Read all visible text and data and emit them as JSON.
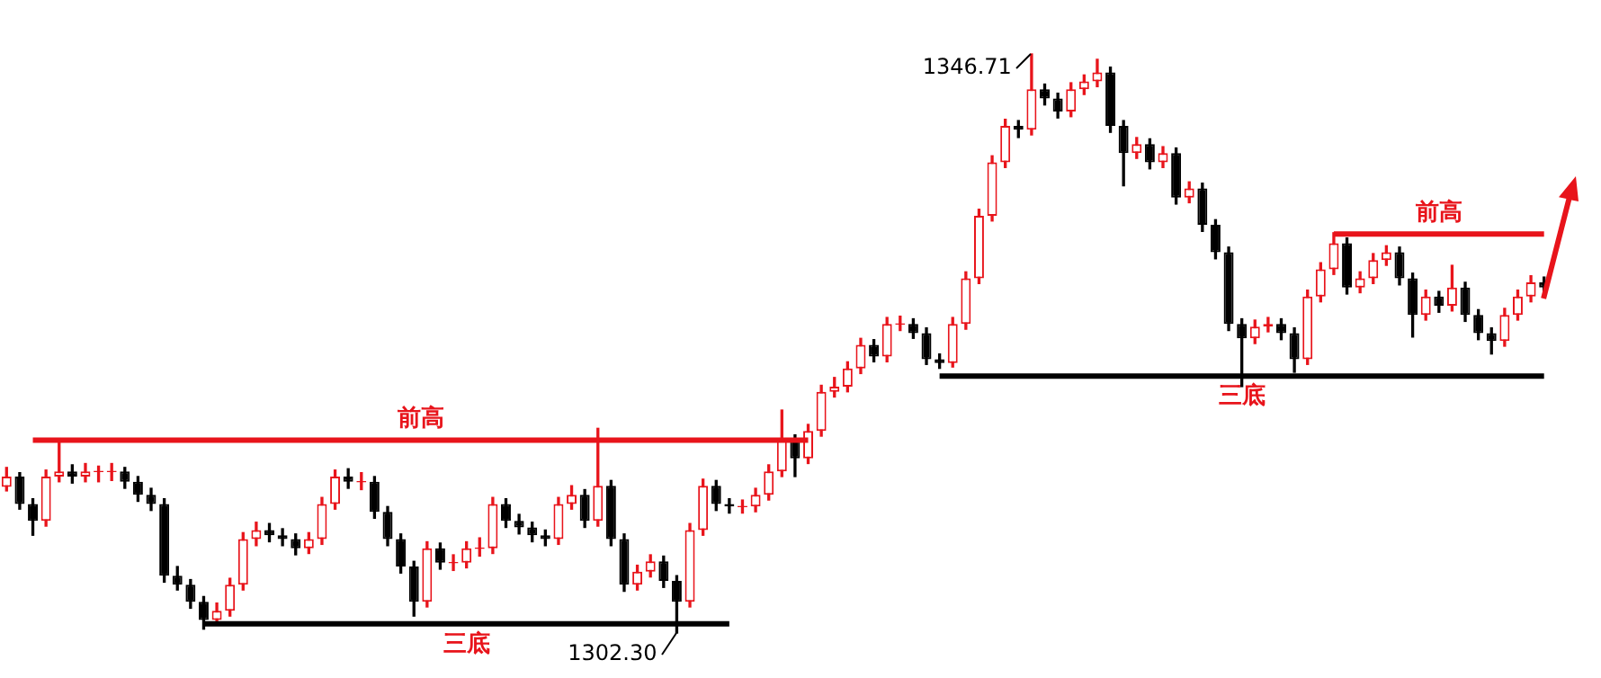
{
  "chart_data": {
    "type": "candlestick",
    "categories": [
      null,
      null,
      null,
      null,
      null,
      null,
      null,
      null,
      null,
      null,
      null,
      null,
      null,
      null,
      null,
      null,
      null,
      null,
      null,
      null,
      null,
      null,
      null,
      null,
      null,
      null,
      null,
      null,
      null,
      null,
      null,
      null,
      null,
      null,
      null,
      null,
      null,
      null,
      null,
      null,
      null,
      null,
      null,
      null,
      null,
      null,
      null,
      null,
      null,
      null,
      null,
      null,
      null,
      null,
      null,
      null,
      null,
      null,
      null,
      null,
      null,
      null,
      null,
      null,
      null,
      null,
      null,
      null,
      null,
      null,
      null,
      null,
      null,
      null,
      null,
      null,
      null,
      null,
      null,
      null,
      null,
      null,
      null,
      null,
      null,
      null,
      null,
      null,
      null,
      null,
      null,
      null,
      null,
      null,
      null,
      null,
      null,
      null,
      null,
      null,
      null,
      null,
      null,
      null,
      null,
      null,
      null,
      null,
      null,
      null,
      null,
      null,
      null,
      null,
      null,
      null,
      null,
      null
    ],
    "ohlc": [
      [
        1313.5,
        1315.0,
        1313.2,
        1314.3
      ],
      [
        1314.3,
        1314.6,
        1311.8,
        1312.2
      ],
      [
        1312.2,
        1312.6,
        1309.8,
        1310.9
      ],
      [
        1310.9,
        1314.8,
        1310.5,
        1314.3
      ],
      [
        1314.3,
        1317.1,
        1313.9,
        1314.7
      ],
      [
        1314.7,
        1315.2,
        1313.8,
        1314.3
      ],
      [
        1314.3,
        1315.3,
        1313.9,
        1314.7
      ],
      [
        1314.7,
        1315.1,
        1313.9,
        1314.7
      ],
      [
        1314.7,
        1315.3,
        1314.0,
        1314.7
      ],
      [
        1314.7,
        1315.0,
        1313.4,
        1313.9
      ],
      [
        1313.9,
        1314.3,
        1312.4,
        1312.9
      ],
      [
        1312.9,
        1313.4,
        1311.7,
        1312.2
      ],
      [
        1312.2,
        1312.6,
        1306.2,
        1306.7
      ],
      [
        1306.7,
        1307.4,
        1305.6,
        1306.0
      ],
      [
        1306.0,
        1306.4,
        1304.2,
        1304.7
      ],
      [
        1304.7,
        1305.1,
        1302.6,
        1303.3
      ],
      [
        1303.3,
        1304.6,
        1302.9,
        1304.0
      ],
      [
        1304.0,
        1306.5,
        1303.6,
        1306.0
      ],
      [
        1306.0,
        1310.0,
        1305.6,
        1309.5
      ],
      [
        1309.5,
        1310.8,
        1309.0,
        1310.2
      ],
      [
        1310.2,
        1310.7,
        1309.3,
        1309.8
      ],
      [
        1309.8,
        1310.3,
        1309.0,
        1309.5
      ],
      [
        1309.5,
        1309.9,
        1308.3,
        1308.8
      ],
      [
        1308.8,
        1310.0,
        1308.4,
        1309.5
      ],
      [
        1309.5,
        1312.7,
        1309.1,
        1312.2
      ],
      [
        1312.2,
        1314.8,
        1311.8,
        1314.3
      ],
      [
        1314.3,
        1314.9,
        1313.4,
        1313.9
      ],
      [
        1313.9,
        1314.6,
        1313.3,
        1313.9
      ],
      [
        1313.9,
        1314.3,
        1311.1,
        1311.6
      ],
      [
        1311.6,
        1312.0,
        1309.0,
        1309.5
      ],
      [
        1309.5,
        1309.9,
        1306.9,
        1307.4
      ],
      [
        1307.4,
        1307.8,
        1303.6,
        1304.7
      ],
      [
        1304.7,
        1309.3,
        1304.3,
        1308.8
      ],
      [
        1308.8,
        1309.2,
        1307.2,
        1307.7
      ],
      [
        1307.7,
        1308.3,
        1307.1,
        1307.7
      ],
      [
        1307.7,
        1309.3,
        1307.3,
        1308.8
      ],
      [
        1308.8,
        1309.6,
        1308.2,
        1308.8
      ],
      [
        1308.8,
        1312.7,
        1308.4,
        1312.2
      ],
      [
        1312.2,
        1312.6,
        1310.4,
        1310.9
      ],
      [
        1310.9,
        1311.4,
        1309.9,
        1310.4
      ],
      [
        1310.4,
        1310.8,
        1309.3,
        1309.8
      ],
      [
        1309.8,
        1310.2,
        1309.0,
        1309.5
      ],
      [
        1309.5,
        1312.7,
        1309.1,
        1312.2
      ],
      [
        1312.2,
        1313.6,
        1311.8,
        1312.9
      ],
      [
        1312.9,
        1313.3,
        1310.4,
        1310.9
      ],
      [
        1310.9,
        1318.0,
        1310.5,
        1313.6
      ],
      [
        1313.6,
        1314.0,
        1309.0,
        1309.5
      ],
      [
        1309.5,
        1309.9,
        1305.5,
        1306.0
      ],
      [
        1306.0,
        1307.5,
        1305.6,
        1307.0
      ],
      [
        1307.0,
        1308.3,
        1306.6,
        1307.8
      ],
      [
        1307.8,
        1308.2,
        1305.8,
        1306.3
      ],
      [
        1306.3,
        1306.7,
        1302.3,
        1304.7
      ],
      [
        1304.7,
        1310.7,
        1304.3,
        1310.2
      ],
      [
        1310.2,
        1314.1,
        1309.8,
        1313.6
      ],
      [
        1313.6,
        1314.0,
        1311.7,
        1312.2
      ],
      [
        1312.2,
        1312.6,
        1311.5,
        1312.0
      ],
      [
        1312.0,
        1312.5,
        1311.5,
        1312.0
      ],
      [
        1312.0,
        1313.4,
        1311.6,
        1312.9
      ],
      [
        1312.9,
        1315.2,
        1312.5,
        1314.7
      ],
      [
        1314.7,
        1319.4,
        1314.3,
        1317.1
      ],
      [
        1317.1,
        1317.5,
        1314.3,
        1315.7
      ],
      [
        1315.7,
        1318.3,
        1315.3,
        1317.8
      ],
      [
        1317.8,
        1321.3,
        1317.4,
        1320.8
      ],
      [
        1320.8,
        1321.9,
        1320.4,
        1321.2
      ],
      [
        1321.2,
        1323.1,
        1320.8,
        1322.6
      ],
      [
        1322.6,
        1324.9,
        1322.2,
        1324.4
      ],
      [
        1324.4,
        1324.8,
        1323.1,
        1323.5
      ],
      [
        1323.5,
        1326.5,
        1323.1,
        1326.0
      ],
      [
        1326.0,
        1326.6,
        1325.5,
        1326.0
      ],
      [
        1326.0,
        1326.4,
        1324.9,
        1325.3
      ],
      [
        1325.3,
        1325.7,
        1322.9,
        1323.3
      ],
      [
        1323.3,
        1323.7,
        1322.6,
        1323.0
      ],
      [
        1323.0,
        1326.5,
        1322.7,
        1326.0
      ],
      [
        1326.0,
        1330.0,
        1325.6,
        1329.5
      ],
      [
        1329.5,
        1334.8,
        1329.1,
        1334.3
      ],
      [
        1334.3,
        1338.9,
        1333.9,
        1338.4
      ],
      [
        1338.4,
        1341.7,
        1338.0,
        1341.2
      ],
      [
        1341.2,
        1341.6,
        1340.3,
        1340.9
      ],
      [
        1340.9,
        1346.71,
        1340.5,
        1344.0
      ],
      [
        1344.0,
        1344.4,
        1342.8,
        1343.3
      ],
      [
        1343.3,
        1343.7,
        1341.8,
        1342.3
      ],
      [
        1342.3,
        1344.5,
        1341.9,
        1344.0
      ],
      [
        1344.0,
        1345.1,
        1343.6,
        1344.6
      ],
      [
        1344.6,
        1346.3,
        1344.2,
        1345.3
      ],
      [
        1345.3,
        1345.7,
        1340.7,
        1341.2
      ],
      [
        1341.2,
        1341.6,
        1336.6,
        1339.1
      ],
      [
        1339.1,
        1340.3,
        1338.7,
        1339.8
      ],
      [
        1339.8,
        1340.2,
        1337.9,
        1338.4
      ],
      [
        1338.4,
        1339.6,
        1338.0,
        1339.1
      ],
      [
        1339.1,
        1339.5,
        1335.2,
        1335.7
      ],
      [
        1335.7,
        1336.9,
        1335.3,
        1336.4
      ],
      [
        1336.4,
        1336.8,
        1333.1,
        1333.6
      ],
      [
        1333.6,
        1334.0,
        1331.0,
        1331.5
      ],
      [
        1331.5,
        1331.9,
        1325.5,
        1326.0
      ],
      [
        1326.0,
        1326.4,
        1321.2,
        1324.9
      ],
      [
        1324.9,
        1326.3,
        1324.5,
        1325.8
      ],
      [
        1325.8,
        1326.5,
        1325.4,
        1326.0
      ],
      [
        1326.0,
        1326.4,
        1324.8,
        1325.3
      ],
      [
        1325.3,
        1325.7,
        1322.3,
        1323.3
      ],
      [
        1323.3,
        1328.6,
        1322.9,
        1328.1
      ],
      [
        1328.1,
        1330.7,
        1327.7,
        1330.2
      ],
      [
        1330.2,
        1333.0,
        1329.8,
        1332.2
      ],
      [
        1332.2,
        1332.6,
        1328.3,
        1328.8
      ],
      [
        1328.8,
        1330.0,
        1328.4,
        1329.5
      ],
      [
        1329.5,
        1331.4,
        1329.1,
        1330.9
      ],
      [
        1330.9,
        1332.0,
        1330.5,
        1331.5
      ],
      [
        1331.5,
        1331.9,
        1329.0,
        1329.5
      ],
      [
        1329.5,
        1329.9,
        1325.0,
        1326.7
      ],
      [
        1326.7,
        1328.6,
        1326.3,
        1328.1
      ],
      [
        1328.1,
        1328.5,
        1326.9,
        1327.4
      ],
      [
        1327.4,
        1330.5,
        1327.0,
        1328.8
      ],
      [
        1328.8,
        1329.2,
        1326.2,
        1326.7
      ],
      [
        1326.7,
        1327.1,
        1324.8,
        1325.3
      ],
      [
        1325.3,
        1325.7,
        1323.7,
        1324.7
      ],
      [
        1324.7,
        1327.2,
        1324.3,
        1326.7
      ],
      [
        1326.7,
        1328.6,
        1326.3,
        1328.1
      ],
      [
        1328.1,
        1329.7,
        1327.7,
        1329.2
      ],
      [
        1329.2,
        1329.6,
        1328.3,
        1328.8
      ]
    ],
    "series": [
      {
        "type": "line",
        "name": "前高",
        "color": "#e8141b",
        "values": [
          null,
          null,
          1317.1,
          null,
          null,
          null,
          null,
          null,
          null,
          null,
          null,
          null,
          null,
          null,
          null,
          null,
          null,
          null,
          null,
          null,
          null,
          null,
          null,
          null,
          null,
          null,
          null,
          null,
          null,
          null,
          null,
          null,
          null,
          null,
          null,
          null,
          null,
          null,
          null,
          null,
          null,
          null,
          null,
          null,
          null,
          null,
          null,
          null,
          null,
          null,
          null,
          null,
          null,
          null,
          null,
          null,
          null,
          null,
          null,
          null,
          null,
          1317.1,
          null,
          null,
          null,
          null,
          null,
          null,
          null,
          null,
          null,
          null,
          null,
          null,
          null,
          null,
          null,
          null,
          null,
          null,
          null,
          null,
          null,
          null,
          null,
          null,
          null,
          null,
          null,
          null,
          null,
          null,
          null,
          null,
          null,
          null,
          null,
          null,
          null,
          null,
          null,
          null,
          null,
          null,
          null,
          null,
          null,
          null,
          null,
          null,
          null,
          null,
          null,
          null,
          null,
          null,
          null,
          null
        ]
      },
      {
        "type": "line",
        "name": "三底",
        "color": "#000000",
        "values": [
          null,
          null,
          null,
          null,
          null,
          null,
          null,
          null,
          null,
          null,
          null,
          null,
          null,
          null,
          null,
          1303.0,
          null,
          null,
          null,
          null,
          null,
          null,
          null,
          null,
          null,
          null,
          null,
          null,
          null,
          null,
          null,
          null,
          null,
          null,
          null,
          null,
          null,
          null,
          null,
          null,
          null,
          null,
          null,
          null,
          null,
          null,
          null,
          null,
          null,
          null,
          null,
          null,
          null,
          null,
          null,
          1303.0,
          null,
          null,
          null,
          null,
          null,
          null,
          null,
          null,
          null,
          null,
          null,
          null,
          null,
          null,
          null,
          null,
          null,
          null,
          null,
          null,
          null,
          null,
          null,
          null,
          null,
          null,
          null,
          null,
          null,
          null,
          null,
          null,
          null,
          null,
          null,
          null,
          null,
          null,
          null,
          null,
          null,
          null,
          null,
          null,
          null,
          null,
          null,
          null,
          null,
          null,
          null,
          null,
          null,
          null,
          null,
          null,
          null,
          null,
          null,
          null,
          null,
          null
        ]
      },
      {
        "type": "line",
        "name": "前高",
        "color": "#e8141b",
        "values": [
          null,
          null,
          null,
          null,
          null,
          null,
          null,
          null,
          null,
          null,
          null,
          null,
          null,
          null,
          null,
          null,
          null,
          null,
          null,
          null,
          null,
          null,
          null,
          null,
          null,
          null,
          null,
          null,
          null,
          null,
          null,
          null,
          null,
          null,
          null,
          null,
          null,
          null,
          null,
          null,
          null,
          null,
          null,
          null,
          null,
          null,
          null,
          null,
          null,
          null,
          null,
          null,
          null,
          null,
          null,
          null,
          null,
          null,
          null,
          null,
          null,
          null,
          null,
          null,
          null,
          null,
          null,
          null,
          null,
          null,
          null,
          null,
          null,
          null,
          null,
          null,
          null,
          null,
          null,
          null,
          null,
          null,
          null,
          null,
          null,
          null,
          null,
          null,
          null,
          null,
          null,
          null,
          null,
          null,
          null,
          null,
          null,
          null,
          null,
          null,
          null,
          1332.9,
          null,
          null,
          null,
          null,
          null,
          null,
          null,
          null,
          null,
          null,
          null,
          null,
          null,
          null,
          null,
          1332.9
        ]
      },
      {
        "type": "line",
        "name": "三底",
        "color": "#000000",
        "values": [
          null,
          null,
          null,
          null,
          null,
          null,
          null,
          null,
          null,
          null,
          null,
          null,
          null,
          null,
          null,
          null,
          null,
          null,
          null,
          null,
          null,
          null,
          null,
          null,
          null,
          null,
          null,
          null,
          null,
          null,
          null,
          null,
          null,
          null,
          null,
          null,
          null,
          null,
          null,
          null,
          null,
          null,
          null,
          null,
          null,
          null,
          null,
          null,
          null,
          null,
          null,
          null,
          null,
          null,
          null,
          null,
          null,
          null,
          null,
          null,
          null,
          null,
          null,
          null,
          null,
          null,
          null,
          null,
          null,
          null,
          null,
          1322.0,
          null,
          null,
          null,
          null,
          null,
          null,
          null,
          null,
          null,
          null,
          null,
          null,
          null,
          null,
          null,
          null,
          null,
          null,
          null,
          null,
          null,
          null,
          null,
          null,
          null,
          null,
          null,
          null,
          null,
          null,
          null,
          null,
          null,
          null,
          null,
          null,
          null,
          null,
          null,
          null,
          null,
          null,
          null,
          null,
          null,
          1322.0
        ]
      }
    ],
    "annotations": [
      "1346.71",
      "1302.30"
    ]
  }
}
